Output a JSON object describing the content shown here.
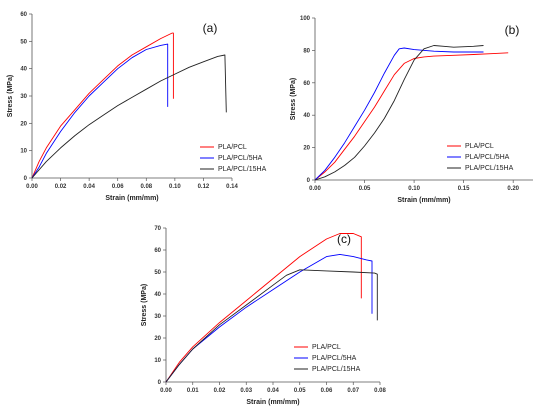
{
  "chart_data": [
    {
      "type": "line",
      "panel_label": "(a)",
      "xlabel": "Strain (mm/mm)",
      "ylabel": "Stress (MPa)",
      "xlim": [
        0,
        0.14
      ],
      "ylim": [
        0,
        60
      ],
      "xticks": [
        0.0,
        0.02,
        0.04,
        0.06,
        0.08,
        0.1,
        0.12,
        0.14
      ],
      "xtick_labels": [
        "0.00",
        "0.02",
        "0.04",
        "0.06",
        "0.08",
        "0.10",
        "0.12",
        "0.14"
      ],
      "yticks": [
        0,
        10,
        20,
        30,
        40,
        50,
        60
      ],
      "ytick_labels": [
        "0",
        "10",
        "20",
        "30",
        "40",
        "50",
        "60"
      ],
      "legend_position": "bottom-right",
      "series": [
        {
          "name": "PLA/PCL",
          "color": "#ff0000",
          "x": [
            0,
            0.005,
            0.01,
            0.02,
            0.03,
            0.04,
            0.05,
            0.06,
            0.07,
            0.08,
            0.09,
            0.098,
            0.099,
            0.099
          ],
          "y": [
            0,
            6,
            11,
            19,
            25,
            31,
            36,
            41,
            45,
            48,
            51,
            53,
            53,
            29
          ]
        },
        {
          "name": "PLA/PCL/5HA",
          "color": "#0000ff",
          "x": [
            0,
            0.005,
            0.01,
            0.02,
            0.03,
            0.04,
            0.05,
            0.06,
            0.07,
            0.08,
            0.09,
            0.095,
            0.095
          ],
          "y": [
            0,
            4,
            9,
            17,
            24,
            30,
            35,
            40,
            44,
            47,
            48.5,
            49,
            26
          ]
        },
        {
          "name": "PLA/PCL/15HA",
          "color": "#222222",
          "x": [
            0,
            0.01,
            0.02,
            0.03,
            0.04,
            0.05,
            0.06,
            0.07,
            0.08,
            0.09,
            0.1,
            0.11,
            0.12,
            0.13,
            0.135,
            0.136
          ],
          "y": [
            0,
            6,
            11,
            15.5,
            19.5,
            23,
            26.5,
            29.5,
            32.5,
            35.5,
            38,
            40.5,
            42.5,
            44.5,
            45,
            24
          ]
        }
      ]
    },
    {
      "type": "line",
      "panel_label": "(b)",
      "xlabel": "Strain (mm/mm)",
      "ylabel": "Stress (MPa)",
      "xlim": [
        0,
        0.22
      ],
      "ylim": [
        0,
        100
      ],
      "xticks": [
        0.0,
        0.05,
        0.1,
        0.15,
        0.2
      ],
      "xtick_labels": [
        "0.00",
        "0.05",
        "0.10",
        "0.15",
        "0.20"
      ],
      "yticks": [
        0,
        20,
        40,
        60,
        80,
        100
      ],
      "ytick_labels": [
        "0",
        "20",
        "40",
        "60",
        "80",
        "100"
      ],
      "legend_position": "bottom-right",
      "series": [
        {
          "name": "PLA/PCL",
          "color": "#ff0000",
          "x": [
            0,
            0.01,
            0.02,
            0.03,
            0.04,
            0.05,
            0.06,
            0.07,
            0.08,
            0.09,
            0.1,
            0.11,
            0.12,
            0.14,
            0.16,
            0.18,
            0.195
          ],
          "y": [
            0,
            5,
            11,
            19,
            27,
            36,
            45,
            55,
            65,
            72,
            75,
            76,
            76.5,
            77,
            77.5,
            78,
            78.5
          ]
        },
        {
          "name": "PLA/PCL/5HA",
          "color": "#0000ff",
          "x": [
            0,
            0.01,
            0.02,
            0.03,
            0.04,
            0.05,
            0.06,
            0.07,
            0.08,
            0.085,
            0.09,
            0.1,
            0.12,
            0.14,
            0.16,
            0.17
          ],
          "y": [
            0,
            6,
            14,
            23,
            33,
            43,
            54,
            66,
            77,
            81,
            81.5,
            80.5,
            79.5,
            79,
            79,
            79
          ]
        },
        {
          "name": "PLA/PCL/15HA",
          "color": "#222222",
          "x": [
            0,
            0.01,
            0.02,
            0.03,
            0.04,
            0.05,
            0.06,
            0.07,
            0.08,
            0.09,
            0.1,
            0.11,
            0.12,
            0.13,
            0.14,
            0.16,
            0.17
          ],
          "y": [
            0,
            2,
            5,
            9,
            14,
            21,
            29,
            38,
            49,
            62,
            74,
            81,
            83,
            82.5,
            82,
            82.5,
            83
          ]
        }
      ]
    },
    {
      "type": "line",
      "panel_label": "(c)",
      "xlabel": "Strain (mm/mm)",
      "ylabel": "Stress (MPa)",
      "xlim": [
        0,
        0.08
      ],
      "ylim": [
        0,
        70
      ],
      "xticks": [
        0.0,
        0.01,
        0.02,
        0.03,
        0.04,
        0.05,
        0.06,
        0.07,
        0.08
      ],
      "xtick_labels": [
        "0.00",
        "0.01",
        "0.02",
        "0.03",
        "0.04",
        "0.05",
        "0.06",
        "0.07",
        "0.08"
      ],
      "yticks": [
        0,
        10,
        20,
        30,
        40,
        50,
        60,
        70
      ],
      "ytick_labels": [
        "0",
        "10",
        "20",
        "30",
        "40",
        "50",
        "60",
        "70"
      ],
      "legend_position": "bottom-right",
      "series": [
        {
          "name": "PLA/PCL",
          "color": "#ff0000",
          "x": [
            0,
            0.005,
            0.01,
            0.02,
            0.03,
            0.04,
            0.05,
            0.06,
            0.065,
            0.07,
            0.073,
            0.073
          ],
          "y": [
            0,
            9,
            16,
            27,
            37,
            47,
            57,
            65,
            67.5,
            67.5,
            66,
            38
          ]
        },
        {
          "name": "PLA/PCL/5HA",
          "color": "#0000ff",
          "x": [
            0,
            0.005,
            0.01,
            0.02,
            0.03,
            0.04,
            0.05,
            0.06,
            0.065,
            0.07,
            0.075,
            0.077,
            0.077
          ],
          "y": [
            0,
            8,
            15,
            25,
            34,
            42,
            50,
            57,
            58,
            57,
            55.5,
            55,
            31
          ]
        },
        {
          "name": "PLA/PCL/15HA",
          "color": "#222222",
          "x": [
            0,
            0.005,
            0.01,
            0.02,
            0.03,
            0.04,
            0.045,
            0.05,
            0.06,
            0.07,
            0.078,
            0.079,
            0.079
          ],
          "y": [
            0,
            8,
            15,
            26,
            35,
            44,
            48.5,
            51,
            50.5,
            50,
            49.5,
            49,
            28
          ]
        }
      ]
    }
  ]
}
